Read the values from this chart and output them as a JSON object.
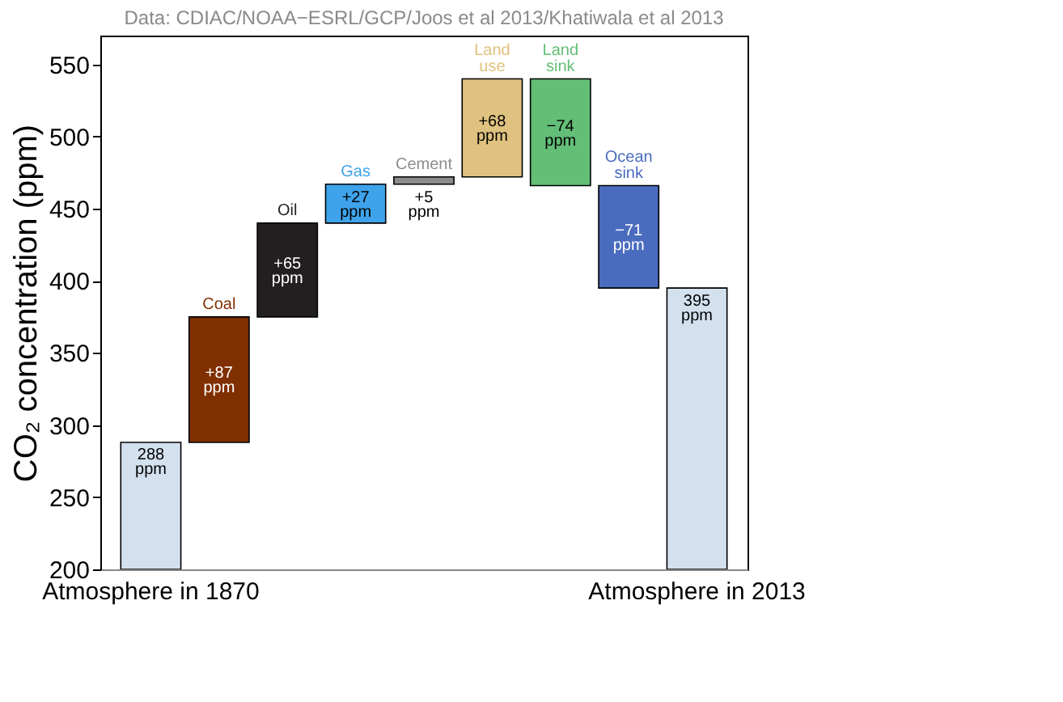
{
  "chart_data": {
    "type": "bar",
    "title": "Data: CDIAC/NOAA−ESRL/GCP/Joos et al 2013/Khatiwala et al 2013",
    "ylabel": "CO₂ concentration (ppm)",
    "categories": [
      "Atmosphere in 1870",
      "Coal",
      "Oil",
      "Gas",
      "Cement",
      "Land use",
      "Land sink",
      "Ocean sink",
      "Atmosphere in 2013"
    ],
    "values": [
      288,
      87,
      65,
      27,
      5,
      68,
      -74,
      -71,
      395
    ],
    "base": [
      null,
      288,
      375,
      440,
      467,
      472,
      540,
      466,
      null
    ],
    "colors": [
      "#d3e0ee",
      "#7f2f00",
      "#231f20",
      "#3ea3ea",
      "#8c8c8c",
      "#dfc27f",
      "#63bf78",
      "#4a6cbf",
      "#d3e0ee"
    ],
    "value_labels": [
      "288 ppm",
      "+87 ppm",
      "+65 ppm",
      "+27 ppm",
      "+5 ppm",
      "+68 ppm",
      "−74 ppm",
      "−71 ppm",
      "395 ppm"
    ],
    "ylim": [
      200,
      570
    ],
    "yticks": [
      200,
      250,
      300,
      350,
      400,
      450,
      500,
      550
    ],
    "grid": false
  }
}
